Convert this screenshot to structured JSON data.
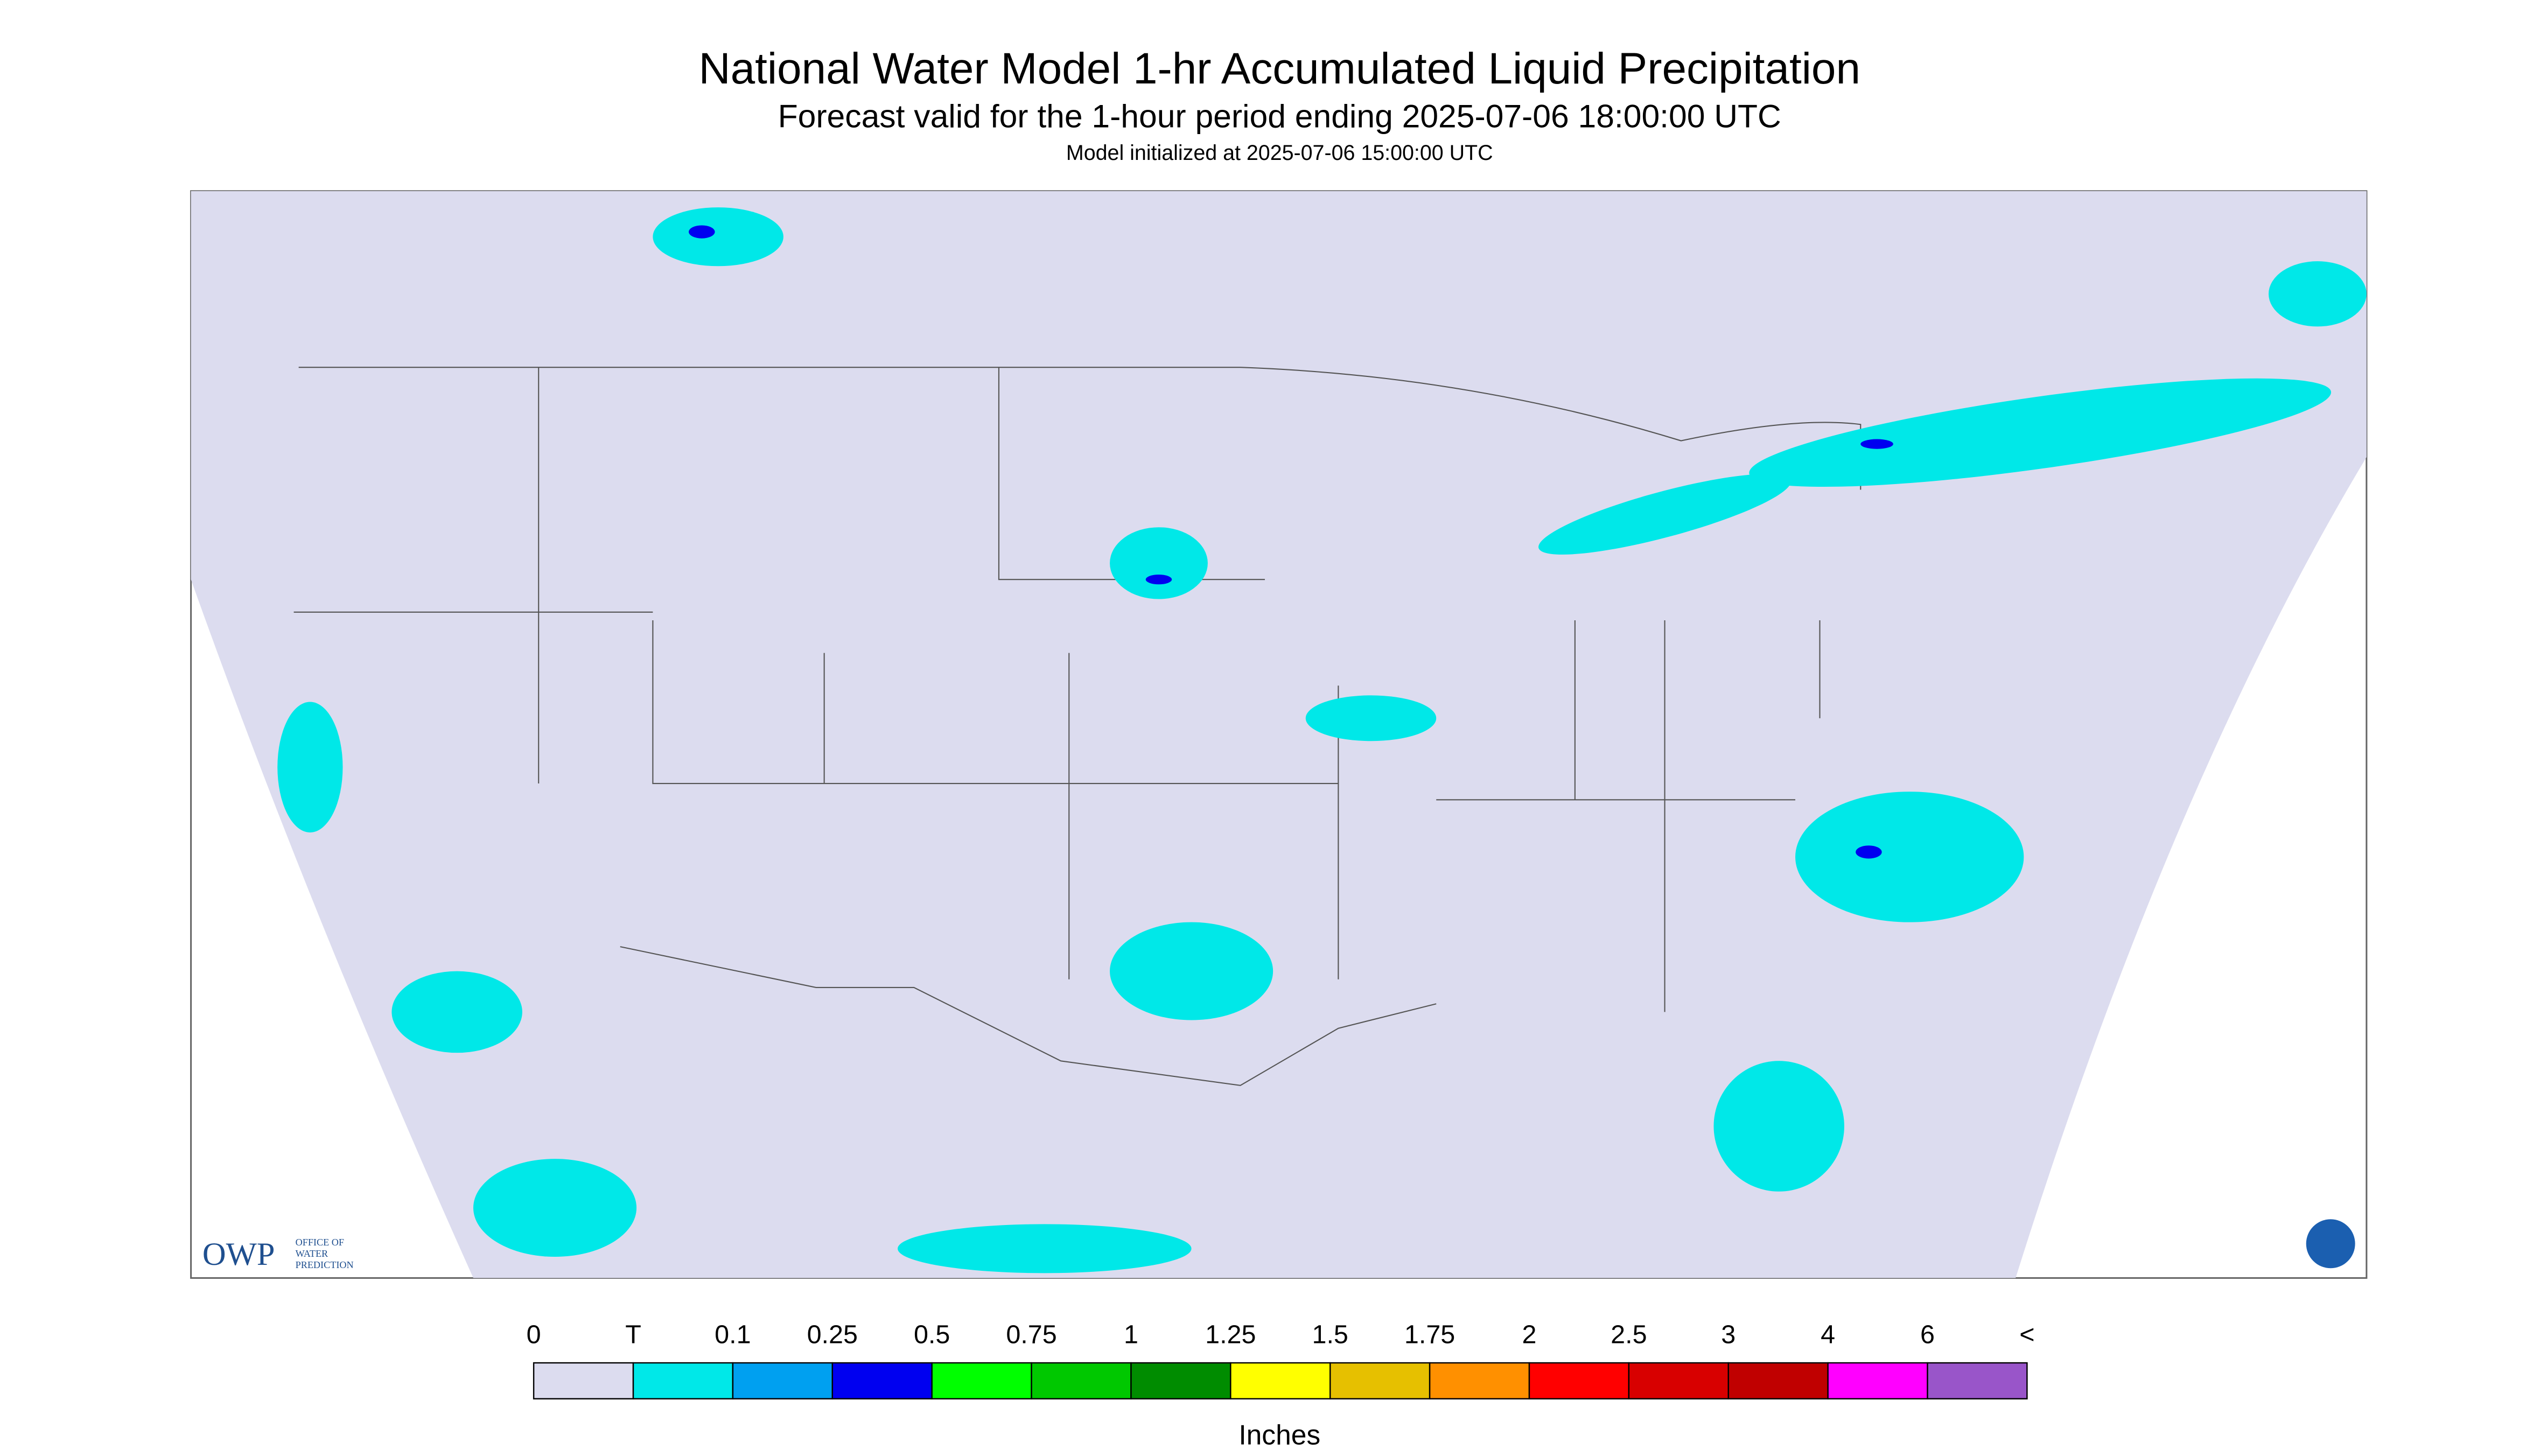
{
  "header": {
    "title": "National Water Model 1-hr Accumulated Liquid Precipitation",
    "subtitle": "Forecast valid for the 1-hour period ending 2025-07-06 18:00:00 UTC",
    "note": "Model initialized at 2025-07-06 15:00:00 UTC"
  },
  "logo": {
    "name": "OWP",
    "line1": "OFFICE OF",
    "line2": "WATER",
    "line3": "PREDICTION"
  },
  "legend": {
    "labels": [
      "0",
      "T",
      "0.1",
      "0.25",
      "0.5",
      "0.75",
      "1",
      "1.25",
      "1.5",
      "1.75",
      "2",
      "2.5",
      "3",
      "4",
      "6",
      "<"
    ],
    "colors": [
      "#dcdcef",
      "#00e8e8",
      "#00a0f0",
      "#0000f0",
      "#00ff00",
      "#00c800",
      "#008c00",
      "#ffff00",
      "#e6c000",
      "#ff9000",
      "#ff0000",
      "#d80000",
      "#c00000",
      "#ff00ff",
      "#9955c9"
    ],
    "unit": "Inches"
  }
}
